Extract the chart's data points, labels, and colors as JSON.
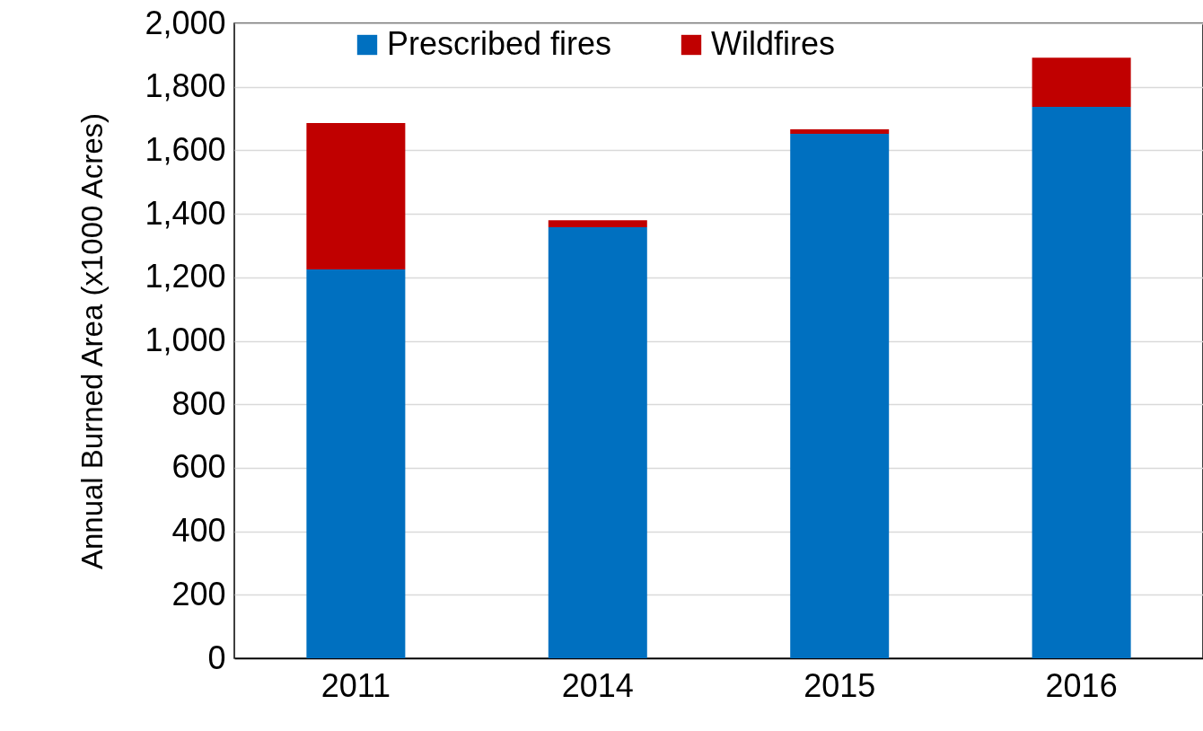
{
  "chart_data": {
    "type": "bar",
    "stacked": true,
    "ylabel": "Annual Burned Area (x1000 Acres)",
    "categories": [
      "2011",
      "2014",
      "2015",
      "2016"
    ],
    "series": [
      {
        "name": "Prescribed fires",
        "color": "#0070c0",
        "values": [
          1225,
          1358,
          1652,
          1737
        ]
      },
      {
        "name": "Wildfires",
        "color": "#c00000",
        "values": [
          461,
          22,
          14,
          155
        ]
      }
    ],
    "ylim": [
      0,
      2000
    ],
    "yticks": [
      0,
      200,
      400,
      600,
      800,
      {
        "value": 1000,
        "label": "1,000"
      },
      {
        "value": 1200,
        "label": "1,200"
      },
      {
        "value": 1400,
        "label": "1,400"
      },
      {
        "value": 1600,
        "label": "1,600"
      },
      {
        "value": 1800,
        "label": "1,800"
      },
      {
        "value": 2000,
        "label": "2,000"
      }
    ],
    "grid": "y",
    "legend": "top"
  }
}
